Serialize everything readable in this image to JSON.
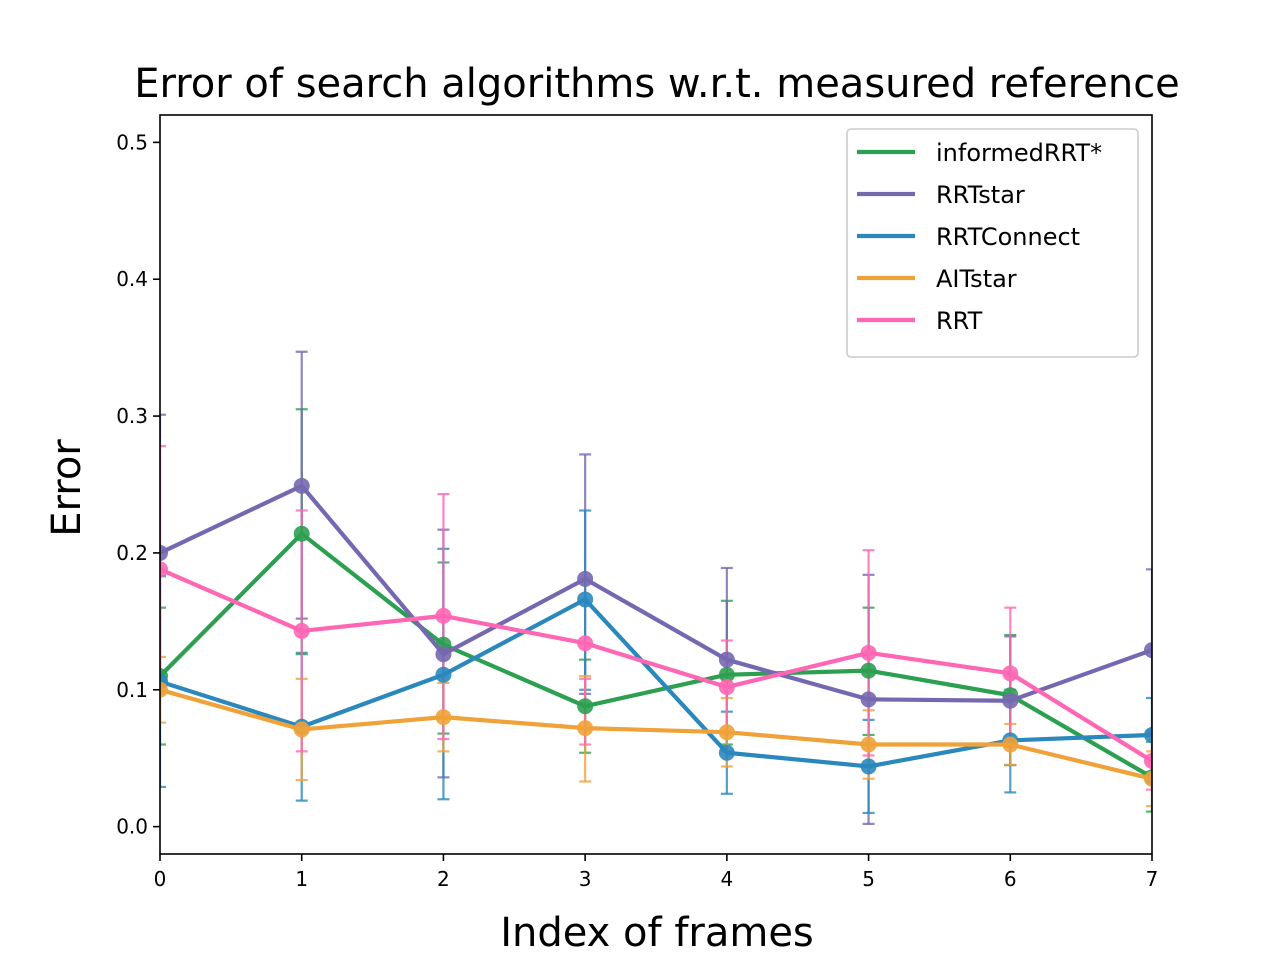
{
  "chart_data": {
    "type": "line",
    "title": "Error of search algorithms w.r.t. measured reference",
    "xlabel": "Index of frames",
    "ylabel": "Error",
    "x": [
      0,
      1,
      2,
      3,
      4,
      5,
      6,
      7
    ],
    "xlim": [
      0,
      7
    ],
    "ylim": [
      -0.02,
      0.52
    ],
    "xticks": [
      "0",
      "1",
      "2",
      "3",
      "4",
      "5",
      "6",
      "7"
    ],
    "yticks": [
      0.0,
      0.1,
      0.2,
      0.3,
      0.4,
      0.5
    ],
    "ytick_labels": [
      "0.0",
      "0.1",
      "0.2",
      "0.3",
      "0.4",
      "0.5"
    ],
    "grid": false,
    "legend_position": "top-right",
    "error_bars": true,
    "series": [
      {
        "name": "informedRRT*",
        "color": "#2ca050",
        "values": [
          0.11,
          0.214,
          0.133,
          0.088,
          0.111,
          0.114,
          0.096,
          0.036
        ],
        "err_low": [
          0.06,
          0.126,
          0.068,
          0.054,
          0.06,
          0.067,
          0.045,
          0.011
        ],
        "err_high": [
          0.16,
          0.305,
          0.193,
          0.122,
          0.165,
          0.16,
          0.14,
          0.062
        ]
      },
      {
        "name": "RRTstar",
        "color": "#7568b0",
        "values": [
          0.2,
          0.249,
          0.126,
          0.181,
          0.122,
          0.093,
          0.092,
          0.129
        ],
        "err_low": [
          0.1,
          0.152,
          0.036,
          0.097,
          0.055,
          0.002,
          0.045,
          0.07
        ],
        "err_high": [
          0.301,
          0.347,
          0.217,
          0.272,
          0.189,
          0.184,
          0.139,
          0.188
        ]
      },
      {
        "name": "RRTConnect",
        "color": "#2a88bc",
        "values": [
          0.106,
          0.073,
          0.111,
          0.166,
          0.054,
          0.044,
          0.063,
          0.067
        ],
        "err_low": [
          0.029,
          0.019,
          0.02,
          0.1,
          0.024,
          0.01,
          0.025,
          0.04
        ],
        "err_high": [
          0.183,
          0.127,
          0.203,
          0.231,
          0.084,
          0.078,
          0.1,
          0.094
        ]
      },
      {
        "name": "AITstar",
        "color": "#f0a23a",
        "values": [
          0.1,
          0.071,
          0.08,
          0.072,
          0.069,
          0.06,
          0.06,
          0.035
        ],
        "err_low": [
          0.076,
          0.034,
          0.055,
          0.033,
          0.044,
          0.035,
          0.045,
          0.015
        ],
        "err_high": [
          0.124,
          0.108,
          0.105,
          0.11,
          0.094,
          0.085,
          0.075,
          0.055
        ]
      },
      {
        "name": "RRT",
        "color": "#ff66b4",
        "values": [
          0.188,
          0.143,
          0.154,
          0.134,
          0.102,
          0.127,
          0.112,
          0.048
        ],
        "err_low": [
          0.097,
          0.055,
          0.064,
          0.06,
          0.068,
          0.052,
          0.064,
          0.027
        ],
        "err_high": [
          0.278,
          0.231,
          0.243,
          0.108,
          0.136,
          0.202,
          0.16,
          0.069
        ]
      }
    ]
  }
}
